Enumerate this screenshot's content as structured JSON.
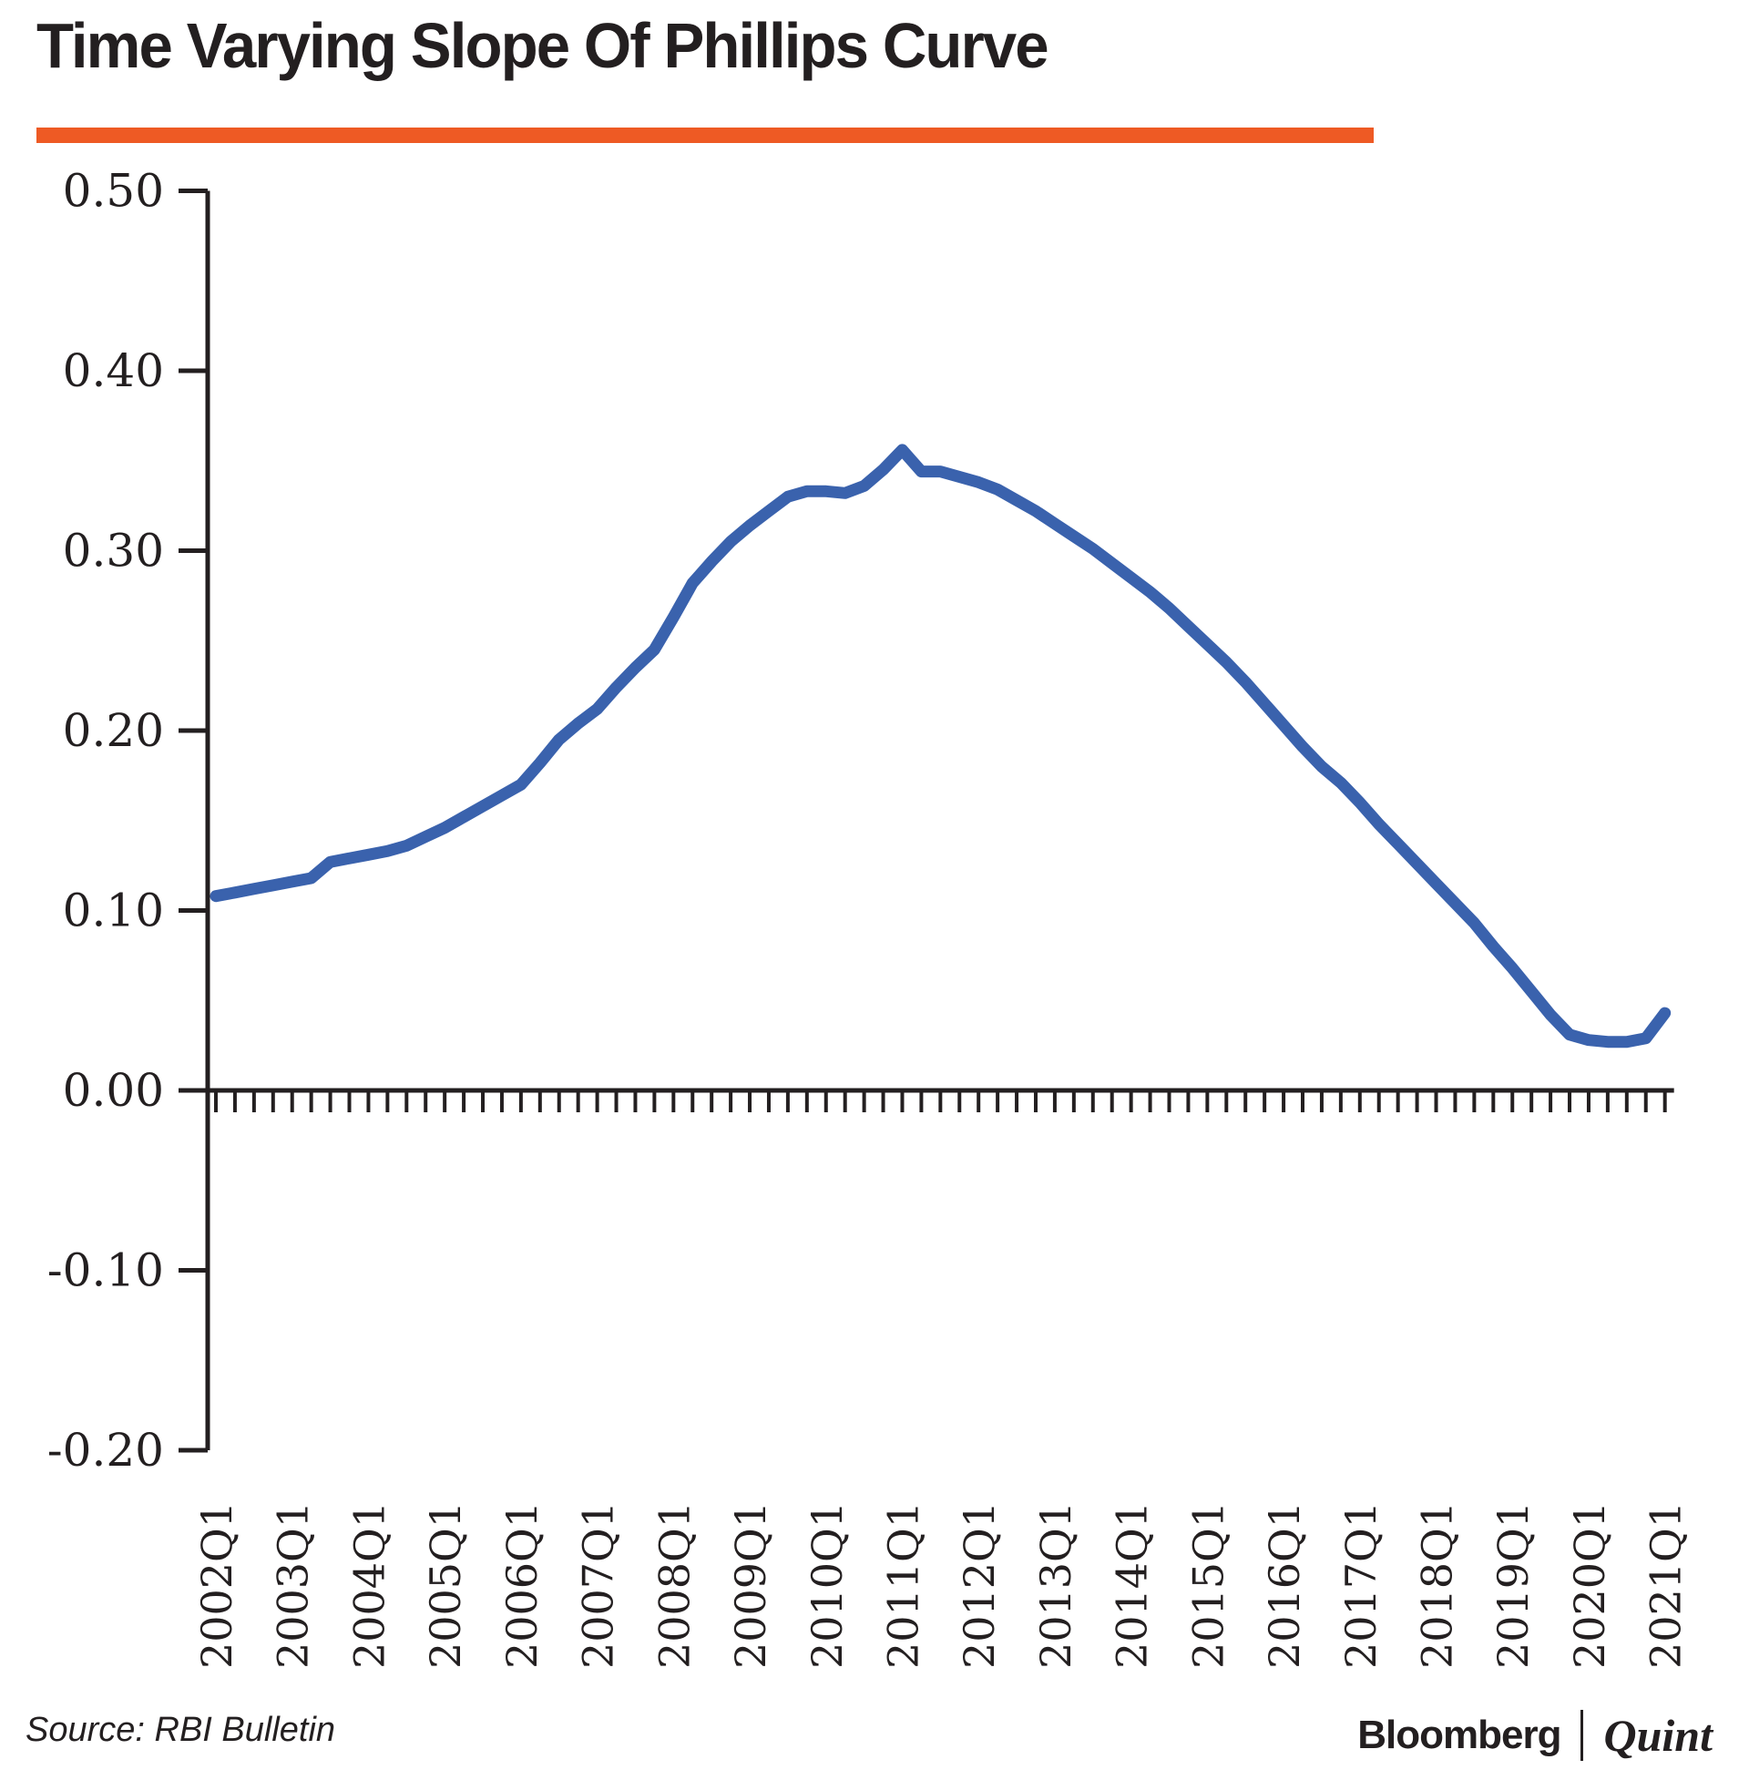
{
  "header": {
    "title": "Time Varying Slope Of Phillips Curve",
    "accent_color": "#ee5a24"
  },
  "footer": {
    "source": "Source: RBI Bulletin",
    "brand_left": "Bloomberg",
    "brand_right": "Quint"
  },
  "chart_data": {
    "type": "line",
    "title": "Time Varying Slope Of Phillips Curve",
    "xlabel": "",
    "ylabel": "",
    "ylim": [
      -0.2,
      0.5
    ],
    "grid": false,
    "legend": "none",
    "y_tick_labels": [
      "0.50",
      "0.40",
      "0.30",
      "0.20",
      "0.10",
      "0.00",
      "-0.10",
      "-0.20"
    ],
    "y_tick_values": [
      0.5,
      0.4,
      0.3,
      0.2,
      0.1,
      0.0,
      -0.1,
      -0.2
    ],
    "x_frequency": "quarterly",
    "x_start": "2002Q1",
    "x_end": "2021Q1",
    "x_tick_labels": [
      "2002Q1",
      "2003Q1",
      "2004Q1",
      "2005Q1",
      "2006Q1",
      "2007Q1",
      "2008Q1",
      "2009Q1",
      "2010Q1",
      "2011Q1",
      "2012Q1",
      "2013Q1",
      "2014Q1",
      "2015Q1",
      "2016Q1",
      "2017Q1",
      "2018Q1",
      "2019Q1",
      "2020Q1",
      "2021Q1"
    ],
    "series": [
      {
        "name": "Time varying slope of Phillips curve",
        "color": "#3a62ad",
        "values": [
          0.108,
          0.11,
          0.112,
          0.114,
          0.116,
          0.118,
          0.127,
          0.129,
          0.131,
          0.133,
          0.136,
          0.141,
          0.146,
          0.152,
          0.158,
          0.164,
          0.17,
          0.182,
          0.195,
          0.204,
          0.212,
          0.224,
          0.235,
          0.245,
          0.263,
          0.282,
          0.294,
          0.305,
          0.314,
          0.322,
          0.33,
          0.333,
          0.333,
          0.332,
          0.336,
          0.345,
          0.356,
          0.344,
          0.344,
          0.341,
          0.338,
          0.334,
          0.328,
          0.322,
          0.315,
          0.308,
          0.301,
          0.293,
          0.285,
          0.277,
          0.268,
          0.258,
          0.248,
          0.238,
          0.227,
          0.215,
          0.203,
          0.191,
          0.18,
          0.171,
          0.16,
          0.148,
          0.137,
          0.126,
          0.115,
          0.104,
          0.093,
          0.08,
          0.068,
          0.055,
          0.042,
          0.031,
          0.028,
          0.027,
          0.027,
          0.029,
          0.043
        ]
      }
    ]
  }
}
